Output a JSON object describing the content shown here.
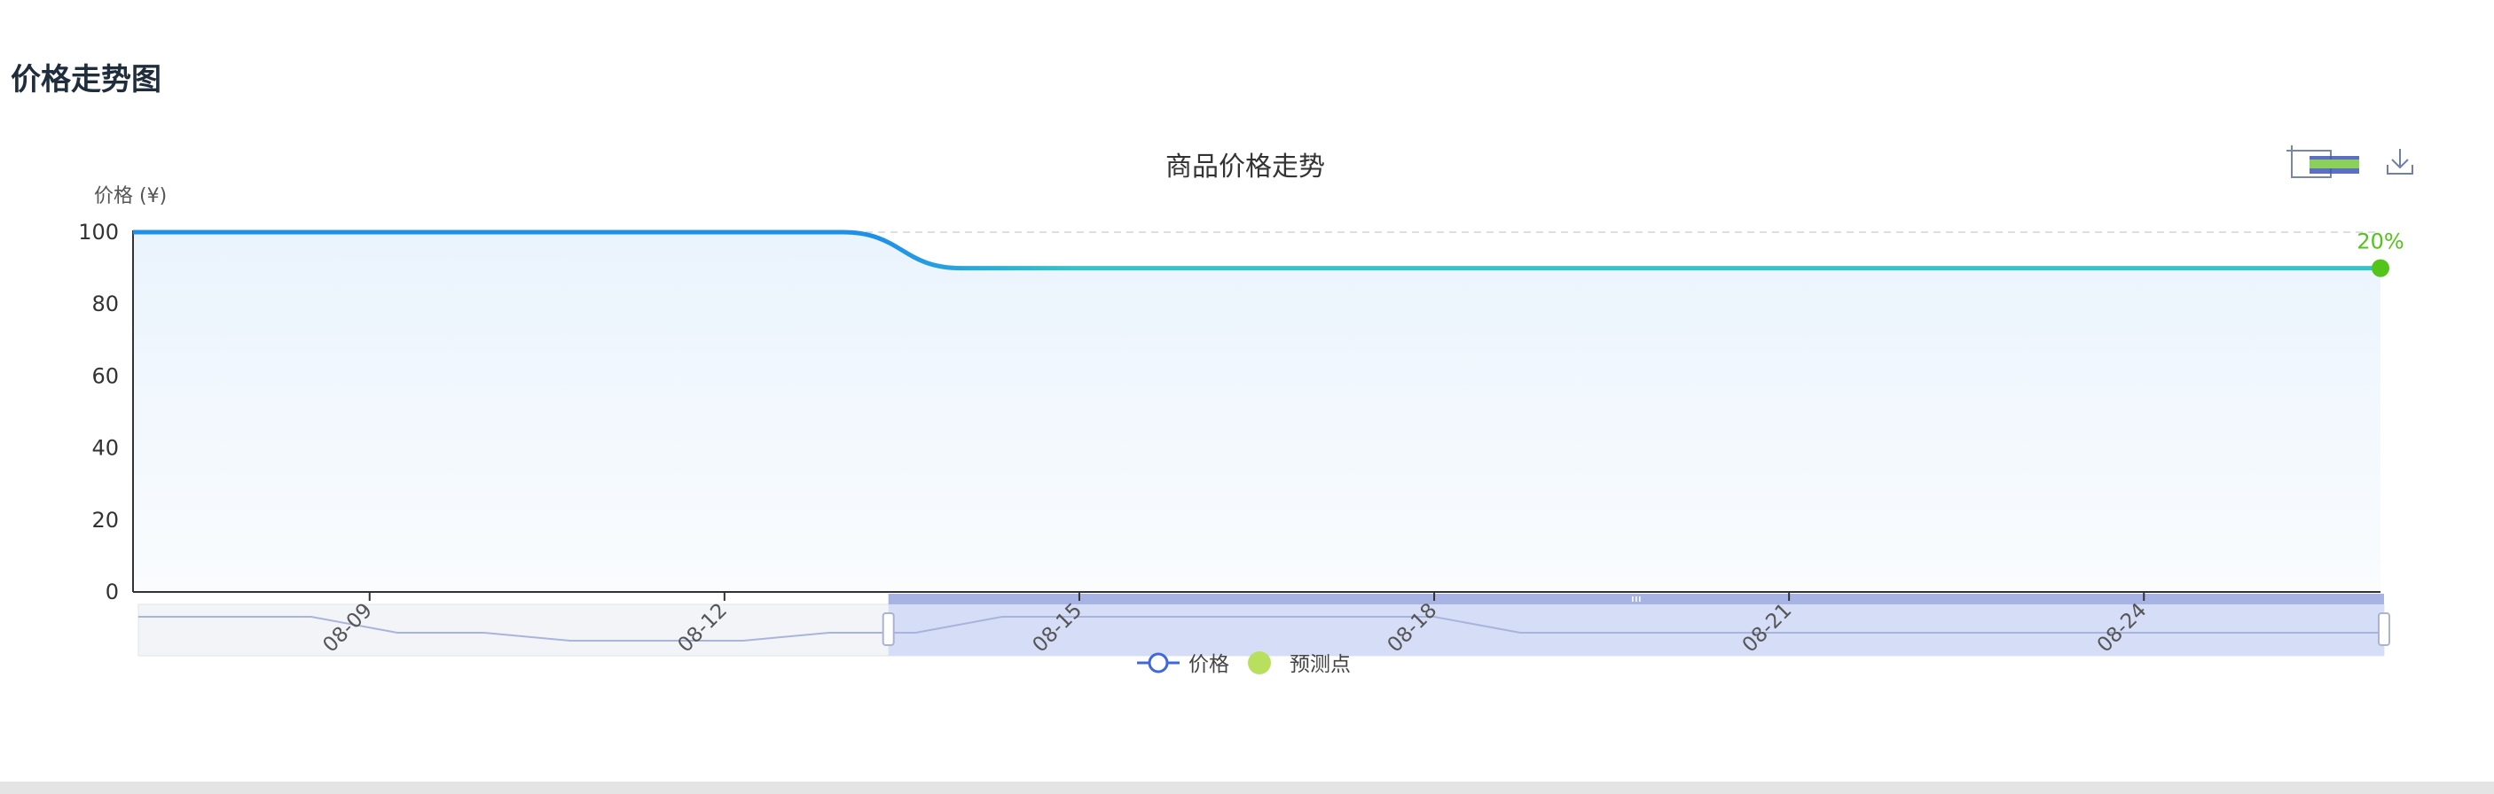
{
  "page": {
    "title": "价格走势图"
  },
  "chart_data": {
    "type": "line",
    "title": "商品价格走势",
    "ylabel": "价格 (¥)",
    "ylim": [
      0,
      100
    ],
    "yticks": [
      0,
      20,
      40,
      60,
      80,
      100
    ],
    "xticks": [
      "08-09",
      "08-12",
      "08-15",
      "08-18",
      "08-21",
      "08-24"
    ],
    "series": [
      {
        "name": "价格",
        "x": [
          "08-07",
          "08-08",
          "08-09",
          "08-10",
          "08-11",
          "08-12",
          "08-13",
          "08-14",
          "08-15",
          "08-16",
          "08-17",
          "08-18",
          "08-19",
          "08-20",
          "08-21",
          "08-22",
          "08-23",
          "08-24",
          "08-25",
          "08-26"
        ],
        "values": [
          100,
          100,
          100,
          100,
          100,
          100,
          100,
          90,
          90,
          90,
          90,
          90,
          90,
          90,
          90,
          90,
          90,
          90,
          90,
          90
        ],
        "color_start": "#1e90e8",
        "color_end": "#36c3c9"
      },
      {
        "name": "预测点",
        "x": [
          "08-26"
        ],
        "values": [
          90
        ],
        "label": "20%",
        "color": "#52c41a"
      }
    ],
    "overview_values": [
      100,
      100,
      100,
      80,
      80,
      70,
      70,
      70,
      80,
      80,
      100,
      100,
      100,
      100,
      100,
      100,
      80,
      80,
      80,
      80,
      80,
      80,
      80,
      80,
      80,
      80,
      80
    ],
    "zoom_range_percent": [
      33.4,
      100
    ],
    "legend": {
      "placement": "bottom-center"
    },
    "grid": true,
    "toolbox": [
      "zoom-icon",
      "restore-icon",
      "download-icon"
    ],
    "colors": {
      "axis": "#333333",
      "grid": "#dcdfe6",
      "area_top": "#eaf4fd",
      "zoom_fill": "#d6ddf7",
      "zoom_bar": "#a7b3e3"
    }
  }
}
